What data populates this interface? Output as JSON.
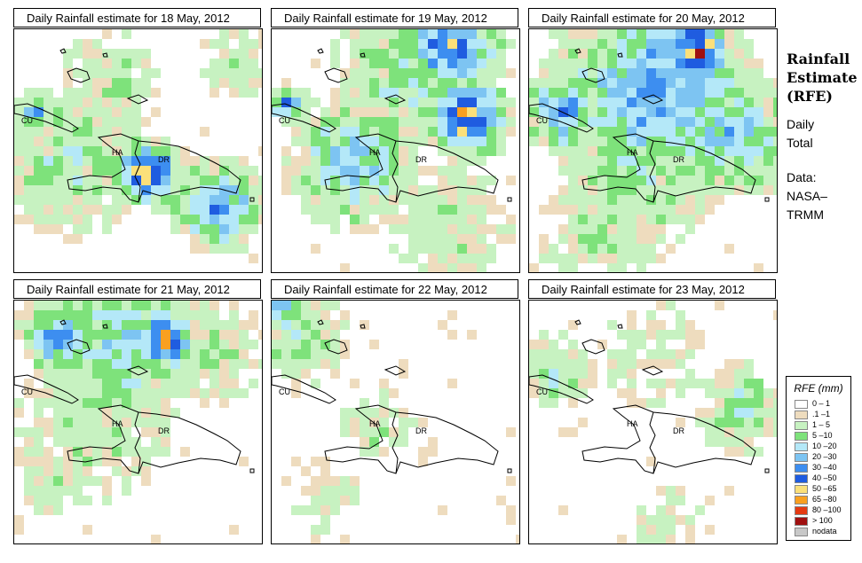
{
  "panels": [
    {
      "title": "Daily Rainfall estimate for  18 May, 2012",
      "labels": {
        "cu": "CU",
        "ha": "HA",
        "dr": "DR"
      }
    },
    {
      "title": "Daily Rainfall estimate for  19 May, 2012",
      "labels": {
        "cu": "CU",
        "ha": "HA",
        "dr": "DR"
      }
    },
    {
      "title": "Daily Rainfall estimate for  20 May, 2012",
      "labels": {
        "cu": "CU",
        "ha": "HA",
        "dr": "DR"
      }
    },
    {
      "title": "Daily Rainfall estimate for  21 May, 2012",
      "labels": {
        "cu": "CU",
        "ha": "HA",
        "dr": "DR"
      }
    },
    {
      "title": "Daily Rainfall estimate for  22 May, 2012",
      "labels": {
        "cu": "CU",
        "ha": "HA",
        "dr": "DR"
      }
    },
    {
      "title": "Daily Rainfall estimate for  23 May, 2012",
      "labels": {
        "cu": "CU",
        "ha": "HA",
        "dr": "DR"
      }
    }
  ],
  "side": {
    "title_lines": [
      "Rainfall",
      "Estimate",
      "(RFE)"
    ],
    "daily": [
      "Daily",
      "Total"
    ],
    "data_lines": [
      "Data:",
      "NASA–",
      "TRMM"
    ]
  },
  "legend": {
    "title": "RFE (mm)",
    "classes": [
      {
        "label": "0 – 1",
        "color": "#ffffff"
      },
      {
        "label": ".1 –1",
        "color": "#eedcbe"
      },
      {
        "label": "1 – 5",
        "color": "#c7f2c1"
      },
      {
        "label": "5 –10",
        "color": "#7ee27b"
      },
      {
        "label": "10 –20",
        "color": "#b4e8f8"
      },
      {
        "label": "20 –30",
        "color": "#7dc4f2"
      },
      {
        "label": "30 –40",
        "color": "#3d8ef0"
      },
      {
        "label": "40 –50",
        "color": "#1f5ce0"
      },
      {
        "label": "50 –65",
        "color": "#fbe07a"
      },
      {
        "label": "65 –80",
        "color": "#f9a020"
      },
      {
        "label": "80 –100",
        "color": "#e53a12"
      },
      {
        "label": "> 100",
        "color": "#a01010"
      },
      {
        "label": "nodata",
        "color": "#c8c8c8"
      }
    ]
  }
}
